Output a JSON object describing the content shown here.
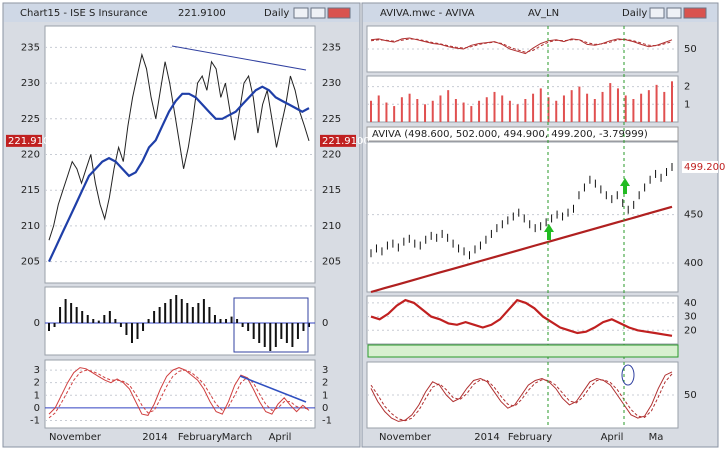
{
  "windows": [
    {
      "title": "Chart15 - ISE S Insurance",
      "price": "221.9100",
      "interval": "Daily",
      "x_labels": [
        "November",
        "2014",
        "February",
        "March",
        "April"
      ],
      "panels": [
        {
          "ylim": [
            202,
            238
          ],
          "yticks": [
            205,
            210,
            215,
            220,
            225,
            230,
            235
          ],
          "series": [
            {
              "style": "line",
              "color": "#222222",
              "values": [
                208,
                210,
                213,
                215,
                217,
                219,
                218,
                216,
                218,
                220,
                216,
                213,
                211,
                214,
                218,
                221,
                219,
                224,
                228,
                231,
                234,
                232,
                228,
                225,
                229,
                233,
                230,
                226,
                222,
                218,
                221,
                225,
                230,
                231,
                229,
                233,
                232,
                228,
                230,
                226,
                222,
                226,
                230,
                231,
                228,
                223,
                227,
                229,
                225,
                221,
                224,
                227,
                231,
                229,
                226,
                224,
                221.9
              ]
            },
            {
              "style": "thick",
              "color": "#1f3fa8",
              "values": [
                205,
                207,
                209,
                211,
                213,
                215,
                217,
                218,
                219,
                219.5,
                219,
                218,
                217,
                217.5,
                219,
                221,
                222,
                224,
                226,
                227.5,
                228.5,
                228.5,
                228,
                227,
                226,
                225,
                225,
                225.5,
                226,
                227,
                228,
                229,
                229.5,
                229,
                228,
                227.5,
                227,
                226.5,
                226,
                226.5
              ]
            }
          ]
        },
        {
          "ylim": [
            -4,
            4.5
          ],
          "yticks": [
            0
          ],
          "series": [
            {
              "style": "bars",
              "color": "#111111",
              "values": [
                -1,
                -0.5,
                2,
                3,
                2.5,
                2,
                1.5,
                1,
                0.5,
                0.3,
                1,
                1.5,
                0.5,
                -0.5,
                -1.5,
                -2.5,
                -2,
                -1,
                0.5,
                1.5,
                2,
                2.5,
                3,
                3.5,
                3,
                2.5,
                2,
                2.5,
                3,
                2,
                1,
                0.5,
                0.5,
                0.8,
                0.5,
                -0.5,
                -1,
                -2,
                -2.5,
                -3,
                -3.5,
                -3,
                -2,
                -2.5,
                -3,
                -2,
                -1,
                -0.5
              ]
            }
          ]
        },
        {
          "ylim": [
            -1.6,
            3.8
          ],
          "yticks": [
            3,
            2,
            1,
            0,
            -1
          ],
          "series": [
            {
              "style": "line",
              "color": "#d04040",
              "values": [
                -0.5,
                0,
                1,
                2,
                2.8,
                3.2,
                3.1,
                2.8,
                2.5,
                2.2,
                2,
                2.3,
                2,
                1.5,
                0.5,
                -0.5,
                -0.6,
                0.3,
                1.5,
                2.5,
                3,
                3.2,
                3,
                2.6,
                2.2,
                1.5,
                0.5,
                -0.3,
                -0.5,
                0.5,
                1.8,
                2.6,
                2.4,
                1.5,
                0.5,
                -0.3,
                -0.5,
                0.3,
                0.8,
                0.2,
                -0.3,
                0.2,
                -0.2
              ]
            },
            {
              "style": "dashed",
              "color": "#d04040",
              "values": [
                -0.8,
                -0.4,
                0.4,
                1.3,
                2.2,
                2.8,
                3,
                2.9,
                2.7,
                2.4,
                2.2,
                2.2,
                2.1,
                1.8,
                1.1,
                0.2,
                -0.4,
                -0.2,
                0.7,
                1.7,
                2.5,
                2.9,
                3,
                2.8,
                2.4,
                1.9,
                1.1,
                0.3,
                -0.2,
                0.1,
                1,
                2,
                2.4,
                2,
                1.1,
                0.3,
                -0.2,
                0,
                0.5,
                0.5,
                0.1,
                0,
                -0.1
              ]
            }
          ]
        }
      ]
    },
    {
      "title": "AVIVA.mwc - AVIVA",
      "symbol": "AV_LN",
      "interval": "Daily",
      "header": "AVIVA (498.600, 502.000, 494.900, 499.200, -3.79999)",
      "price": "499.200",
      "x_labels": [
        "November",
        "2014",
        "February",
        "April",
        "Ma"
      ],
      "panels": [
        {
          "ylim": [
            0,
            100
          ],
          "yticks": [
            50
          ],
          "series": [
            {
              "style": "line",
              "color": "#b03030",
              "values": [
                70,
                72,
                68,
                65,
                72,
                74,
                70,
                66,
                62,
                60,
                55,
                52,
                50,
                58,
                62,
                64,
                66,
                60,
                50,
                45,
                40,
                52,
                62,
                68,
                70,
                66,
                72,
                70,
                60,
                58,
                62,
                68,
                72,
                70,
                66,
                60,
                55,
                58,
                64,
                70
              ]
            },
            {
              "style": "dashed",
              "color": "#b03030",
              "values": [
                68,
                70,
                69,
                67,
                69,
                72,
                71,
                68,
                64,
                61,
                57,
                54,
                52,
                55,
                60,
                63,
                65,
                62,
                54,
                48,
                43,
                47,
                57,
                65,
                69,
                68,
                70,
                70,
                64,
                60,
                61,
                65,
                70,
                71,
                68,
                63,
                58,
                57,
                61,
                66
              ]
            }
          ]
        },
        {
          "ylim": [
            0,
            2.6
          ],
          "yticks": [
            1,
            2
          ],
          "series": [
            {
              "style": "bars",
              "color": "#e05050",
              "values": [
                1.2,
                1.5,
                1.1,
                0.9,
                1.4,
                1.6,
                1.3,
                1.0,
                1.2,
                1.5,
                1.8,
                1.3,
                1.1,
                0.9,
                1.2,
                1.4,
                1.7,
                1.5,
                1.2,
                1.0,
                1.3,
                1.6,
                1.9,
                1.4,
                1.2,
                1.5,
                1.8,
                2.0,
                1.6,
                1.3,
                1.7,
                2.2,
                1.9,
                1.5,
                1.3,
                1.6,
                1.8,
                2.1,
                1.7,
                2.3
              ]
            }
          ]
        },
        {
          "ylim": [
            370,
            525
          ],
          "yticks": [
            400,
            450
          ],
          "series": [
            {
              "style": "ticks",
              "color": "#111111",
              "values": [
                410,
                415,
                412,
                418,
                420,
                416,
                422,
                425,
                420,
                418,
                424,
                428,
                426,
                430,
                426,
                420,
                415,
                412,
                408,
                414,
                418,
                424,
                430,
                436,
                440,
                444,
                448,
                452,
                446,
                440,
                436,
                438,
                442,
                446,
                450,
                448,
                452,
                456,
                470,
                478,
                486,
                482,
                476,
                470,
                466,
                470,
                462,
                455,
                460,
                470,
                478,
                486,
                492,
                488,
                494,
                499.2
              ]
            },
            {
              "style": "thick",
              "color": "#b02020",
              "values": [
                370,
                374,
                378,
                382,
                386,
                390,
                394,
                398,
                402,
                406,
                410,
                414,
                418,
                422,
                426,
                430,
                434,
                438,
                442,
                446,
                450,
                454,
                458
              ]
            }
          ]
        },
        {
          "ylim": [
            10,
            45
          ],
          "yticks": [
            40,
            30,
            20
          ],
          "series": [
            {
              "style": "thick",
              "color": "#c02020",
              "values": [
                30,
                28,
                32,
                38,
                42,
                40,
                35,
                30,
                28,
                25,
                24,
                26,
                24,
                22,
                24,
                28,
                35,
                42,
                40,
                36,
                30,
                26,
                22,
                20,
                18,
                19,
                22,
                26,
                28,
                25,
                22,
                20,
                19,
                18,
                17,
                16
              ]
            }
          ]
        },
        {
          "ylim": [
            0,
            100
          ],
          "yticks": [
            50
          ],
          "series": [
            {
              "style": "line",
              "color": "#b03030",
              "values": [
                60,
                40,
                25,
                15,
                10,
                12,
                20,
                35,
                55,
                70,
                65,
                50,
                40,
                45,
                60,
                72,
                75,
                70,
                55,
                40,
                30,
                35,
                50,
                65,
                72,
                75,
                70,
                60,
                45,
                35,
                40,
                55,
                70,
                75,
                72,
                65,
                50,
                35,
                20,
                15,
                18,
                35,
                60,
                80,
                85
              ]
            },
            {
              "style": "dashed",
              "color": "#b03030",
              "values": [
                65,
                50,
                33,
                22,
                14,
                11,
                15,
                27,
                45,
                62,
                67,
                58,
                46,
                43,
                52,
                66,
                73,
                72,
                62,
                48,
                36,
                33,
                43,
                57,
                68,
                73,
                72,
                65,
                53,
                41,
                38,
                47,
                62,
                72,
                73,
                69,
                58,
                43,
                28,
                18,
                16,
                26,
                47,
                70,
                82
              ]
            }
          ]
        }
      ]
    }
  ]
}
